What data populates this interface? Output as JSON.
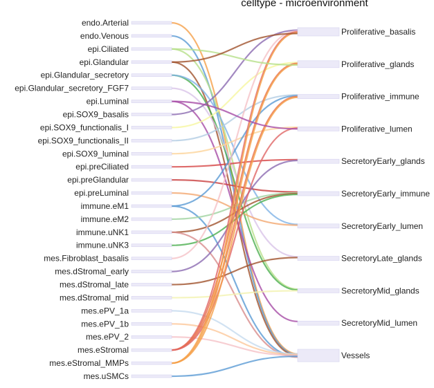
{
  "title": "celltype - microenvironment",
  "left_nodes": [
    {
      "id": "endo.Arterial",
      "label": "endo.Arterial"
    },
    {
      "id": "endo.Venous",
      "label": "endo.Venous"
    },
    {
      "id": "epi.Ciliated",
      "label": "epi.Ciliated"
    },
    {
      "id": "epi.Glandular",
      "label": "epi.Glandular"
    },
    {
      "id": "epi.Glandular_secretory",
      "label": "epi.Glandular_secretory"
    },
    {
      "id": "epi.Glandular_secretory_FGF7",
      "label": "epi.Glandular_secretory_FGF7"
    },
    {
      "id": "epi.Luminal",
      "label": "epi.Luminal"
    },
    {
      "id": "epi.SOX9_basalis",
      "label": "epi.SOX9_basalis"
    },
    {
      "id": "epi.SOX9_functionalis_I",
      "label": "epi.SOX9_functionalis_I"
    },
    {
      "id": "epi.SOX9_functionalis_II",
      "label": "epi.SOX9_functionalis_II"
    },
    {
      "id": "epi.SOX9_luminal",
      "label": "epi.SOX9_luminal"
    },
    {
      "id": "epi.preCiliated",
      "label": "epi.preCiliated"
    },
    {
      "id": "epi.preGlandular",
      "label": "epi.preGlandular"
    },
    {
      "id": "epi.preLuminal",
      "label": "epi.preLuminal"
    },
    {
      "id": "immune.eM1",
      "label": "immune.eM1"
    },
    {
      "id": "immune.eM2",
      "label": "immune.eM2"
    },
    {
      "id": "immune.uNK1",
      "label": "immune.uNK1"
    },
    {
      "id": "immune.uNK3",
      "label": "immune.uNK3"
    },
    {
      "id": "mes.Fibroblast_basalis",
      "label": "mes.Fibroblast_basalis"
    },
    {
      "id": "mes.dStromal_early",
      "label": "mes.dStromal_early"
    },
    {
      "id": "mes.dStromal_late",
      "label": "mes.dStromal_late"
    },
    {
      "id": "mes.dStromal_mid",
      "label": "mes.dStromal_mid"
    },
    {
      "id": "mes.ePV_1a",
      "label": "mes.ePV_1a"
    },
    {
      "id": "mes.ePV_1b",
      "label": "mes.ePV_1b"
    },
    {
      "id": "mes.ePV_2",
      "label": "mes.ePV_2"
    },
    {
      "id": "mes.eStromal",
      "label": "mes.eStromal"
    },
    {
      "id": "mes.eStromal_MMPs",
      "label": "mes.eStromal_MMPs"
    },
    {
      "id": "mes.uSMCs",
      "label": "mes.uSMCs"
    }
  ],
  "right_nodes": [
    {
      "id": "Proliferative_basalis",
      "label": "Proliferative_basalis"
    },
    {
      "id": "Proliferative_glands",
      "label": "Proliferative_glands"
    },
    {
      "id": "Proliferative_immune",
      "label": "Proliferative_immune"
    },
    {
      "id": "Proliferative_lumen",
      "label": "Proliferative_lumen"
    },
    {
      "id": "SecretoryEarly_glands",
      "label": "SecretoryEarly_glands"
    },
    {
      "id": "SecretoryEarly_immune",
      "label": "SecretoryEarly_immune"
    },
    {
      "id": "SecretoryEarly_lumen",
      "label": "SecretoryEarly_lumen"
    },
    {
      "id": "SecretoryLate_glands",
      "label": "SecretoryLate_glands"
    },
    {
      "id": "SecretoryMid_glands",
      "label": "SecretoryMid_glands"
    },
    {
      "id": "SecretoryMid_lumen",
      "label": "SecretoryMid_lumen"
    },
    {
      "id": "Vessels",
      "label": "Vessels"
    }
  ],
  "colors": {
    "node_fill": "#eceaf8",
    "node_stroke": "#d6d3ef"
  },
  "flows": [
    {
      "source": "endo.Arterial",
      "target": "Vessels",
      "color": "#f5a04a"
    },
    {
      "source": "endo.Venous",
      "target": "Vessels",
      "color": "#5b9bd5"
    },
    {
      "source": "epi.Ciliated",
      "target": "SecretoryMid_glands",
      "color": "#b7e08a"
    },
    {
      "source": "epi.Glandular",
      "target": "Vessels",
      "color": "#a0522d"
    },
    {
      "source": "epi.Glandular_secretory",
      "target": "SecretoryMid_glands",
      "color": "#4caf50"
    },
    {
      "source": "epi.Glandular_secretory",
      "target": "SecretoryEarly_lumen",
      "color": "#7fb3e6"
    },
    {
      "source": "epi.Glandular_secretory_FGF7",
      "target": "SecretoryLate_glands",
      "color": "#d9c4e8"
    },
    {
      "source": "epi.Luminal",
      "target": "SecretoryMid_lumen",
      "color": "#a64ca6"
    },
    {
      "source": "epi.SOX9_basalis",
      "target": "Proliferative_basalis",
      "color": "#8c6bb1"
    },
    {
      "source": "epi.SOX9_functionalis_I",
      "target": "Proliferative_glands",
      "color": "#f6f6a0"
    },
    {
      "source": "epi.SOX9_functionalis_II",
      "target": "Proliferative_immune",
      "color": "#b3cde3"
    },
    {
      "source": "epi.SOX9_luminal",
      "target": "Proliferative_lumen",
      "color": "#fcd49b"
    },
    {
      "source": "epi.preCiliated",
      "target": "SecretoryEarly_glands",
      "color": "#d64545"
    },
    {
      "source": "epi.preGlandular",
      "target": "SecretoryEarly_immune",
      "color": "#c94040"
    },
    {
      "source": "epi.preLuminal",
      "target": "SecretoryEarly_lumen",
      "color": "#f2a870"
    },
    {
      "source": "immune.eM1",
      "target": "Proliferative_immune",
      "color": "#5b9bd5"
    },
    {
      "source": "immune.eM1",
      "target": "Vessels",
      "color": "#5b9bd5"
    },
    {
      "source": "immune.eM2",
      "target": "SecretoryEarly_immune",
      "color": "#a0d3a0"
    },
    {
      "source": "immune.uNK1",
      "target": "SecretoryEarly_immune",
      "color": "#a0522d"
    },
    {
      "source": "immune.uNK1",
      "target": "Vessels",
      "color": "#d88c8c"
    },
    {
      "source": "immune.uNK3",
      "target": "SecretoryEarly_immune",
      "color": "#4caf50"
    },
    {
      "source": "mes.Fibroblast_basalis",
      "target": "Proliferative_basalis",
      "color": "#f5c2c7"
    },
    {
      "source": "mes.dStromal_early",
      "target": "SecretoryEarly_glands",
      "color": "#8c6bb1"
    },
    {
      "source": "mes.dStromal_late",
      "target": "SecretoryLate_glands",
      "color": "#a0522d"
    },
    {
      "source": "mes.dStromal_mid",
      "target": "SecretoryMid_glands",
      "color": "#f3f3b0"
    },
    {
      "source": "mes.ePV_1a",
      "target": "Vessels",
      "color": "#c6dbef"
    },
    {
      "source": "mes.ePV_1b",
      "target": "Vessels",
      "color": "#fcc89b"
    },
    {
      "source": "mes.ePV_2",
      "target": "Vessels",
      "color": "#f5c2c7"
    },
    {
      "source": "mes.eStromal",
      "target": "Proliferative_basalis",
      "color": "#e06666"
    },
    {
      "source": "mes.eStromal",
      "target": "Proliferative_glands",
      "color": "#e8704a"
    },
    {
      "source": "mes.eStromal",
      "target": "Proliferative_immune",
      "color": "#e8704a"
    },
    {
      "source": "mes.eStromal",
      "target": "Proliferative_lumen",
      "color": "#e06666"
    },
    {
      "source": "mes.eStromal_MMPs",
      "target": "Proliferative_basalis",
      "color": "#f5a04a"
    },
    {
      "source": "mes.eStromal_MMPs",
      "target": "Proliferative_glands",
      "color": "#f5a04a"
    },
    {
      "source": "mes.eStromal_MMPs",
      "target": "Proliferative_immune",
      "color": "#f5a04a"
    },
    {
      "source": "mes.uSMCs",
      "target": "Vessels",
      "color": "#5b9bd5"
    },
    {
      "source": "epi.Ciliated",
      "target": "Proliferative_glands",
      "color": "#b7e08a"
    },
    {
      "source": "epi.Glandular",
      "target": "Proliferative_basalis",
      "color": "#a0522d"
    },
    {
      "source": "epi.Luminal",
      "target": "Proliferative_lumen",
      "color": "#a64ca6"
    }
  ]
}
